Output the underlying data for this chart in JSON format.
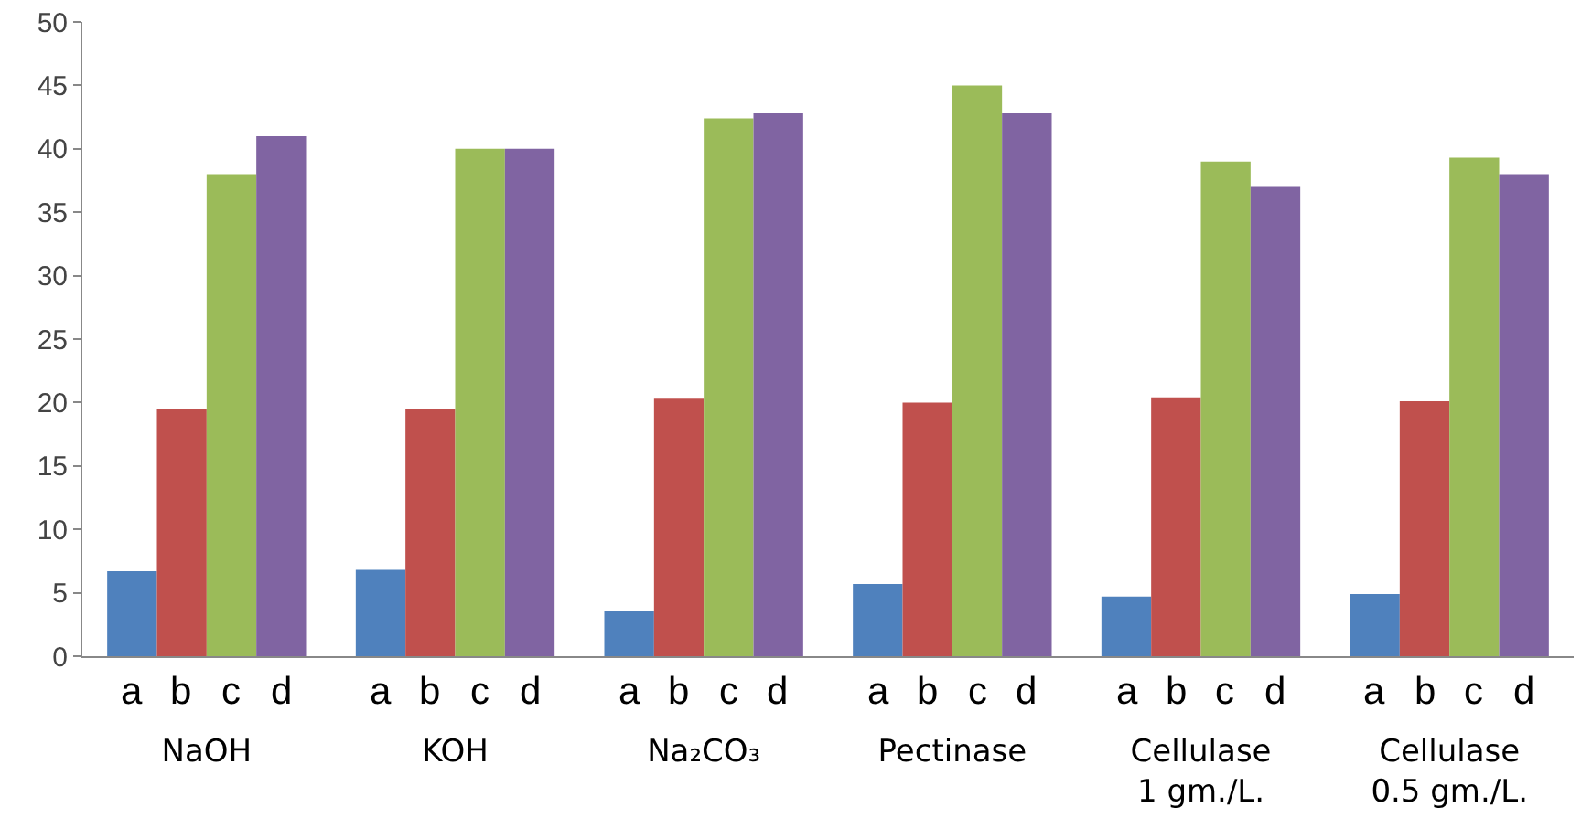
{
  "chart_data": {
    "type": "bar",
    "categories": [
      "NaOH",
      "KOH",
      "Na₂CO₃",
      "Pectinase",
      "Cellulase\n1 gm./L.",
      "Cellulase\n0.5 gm./L."
    ],
    "series": [
      {
        "name": "a",
        "color": "#4f81bd",
        "values": [
          6.7,
          6.8,
          3.6,
          5.7,
          4.7,
          4.9
        ]
      },
      {
        "name": "b",
        "color": "#c0504d",
        "values": [
          19.5,
          19.5,
          20.3,
          20,
          20.4,
          20.1
        ]
      },
      {
        "name": "c",
        "color": "#9bbb59",
        "values": [
          38,
          40,
          42.4,
          45,
          39,
          39.3
        ]
      },
      {
        "name": "d",
        "color": "#8064a2",
        "values": [
          41,
          40,
          42.8,
          42.8,
          37,
          38
        ]
      }
    ],
    "ylim": [
      0,
      50
    ],
    "yticks": [
      0,
      5,
      10,
      15,
      20,
      25,
      30,
      35,
      40,
      45,
      50
    ],
    "grid": false,
    "legend": false
  }
}
